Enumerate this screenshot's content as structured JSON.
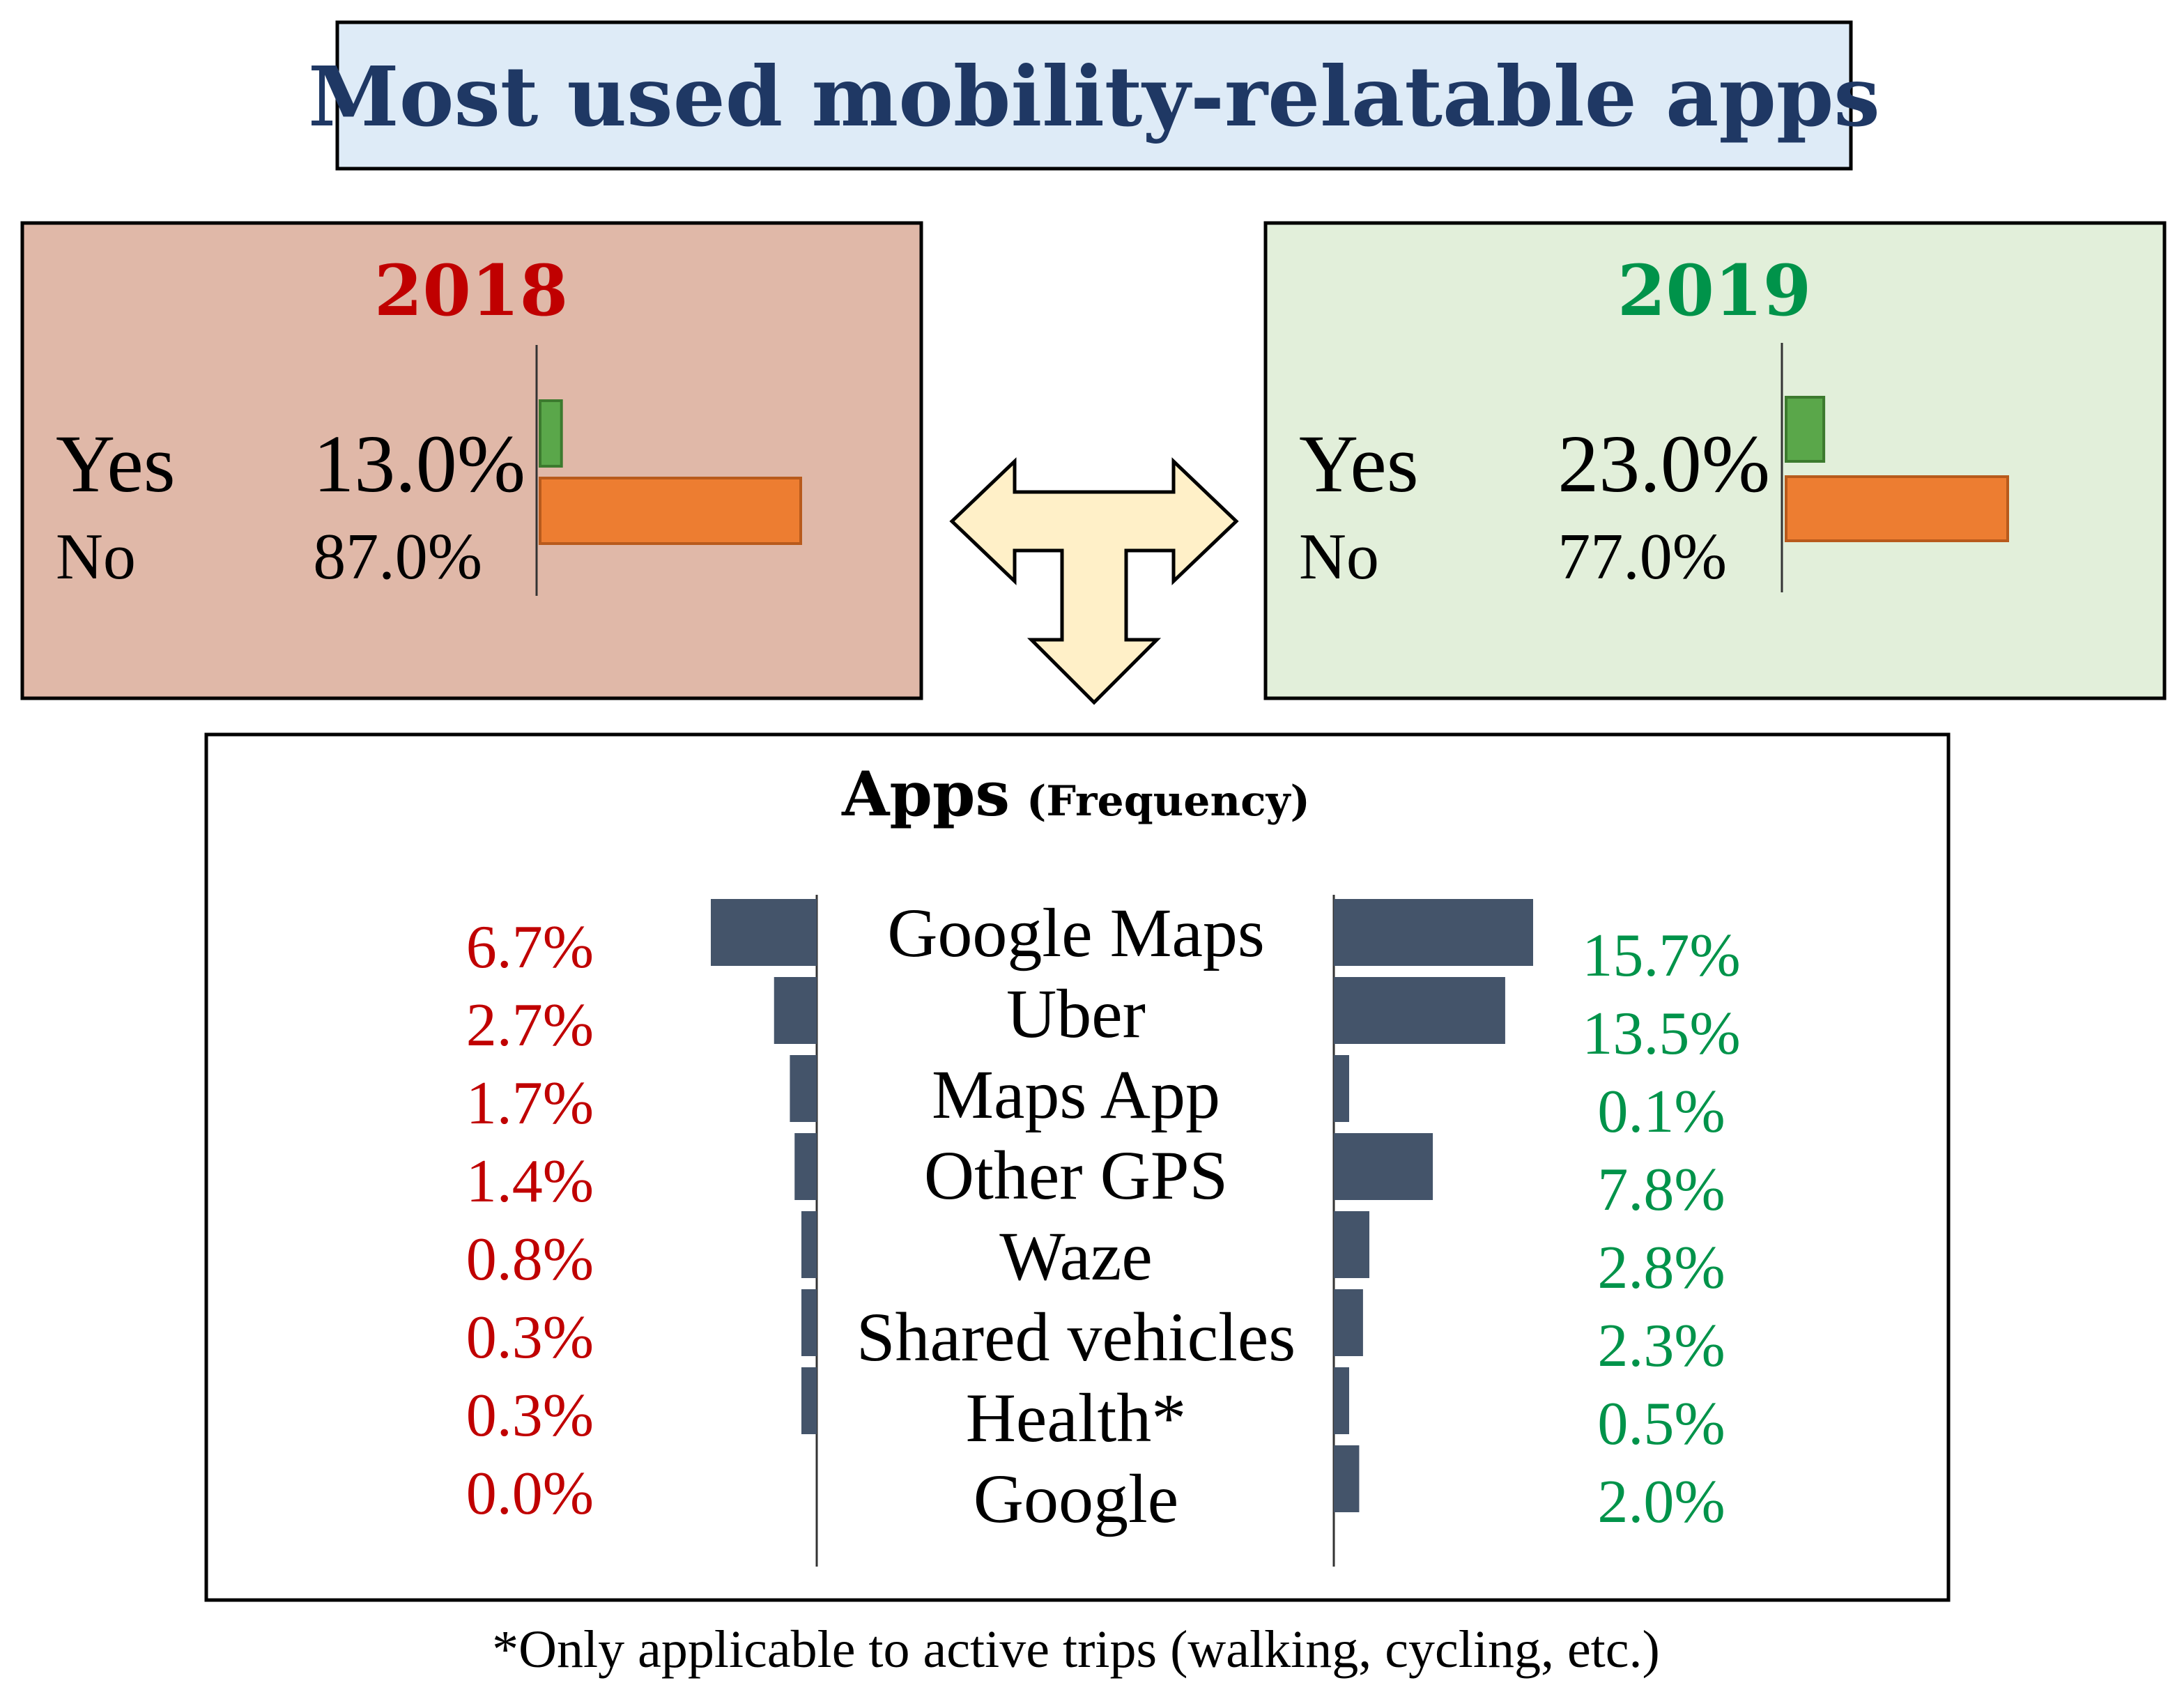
{
  "title": "Most used mobility-relatable apps",
  "colors": {
    "title_box_fill": "#deebf7",
    "box_2018_fill": "#e0b8a8",
    "box_2019_fill": "#e2efda",
    "year_2018": "#c00000",
    "year_2019": "#00934a",
    "yes_bar": "#5aa74a",
    "no_bar": "#ed7d31",
    "app_bar": "#44546a",
    "arrow_fill": "#fff0c8"
  },
  "chart_data": [
    {
      "type": "bar",
      "title": "2018",
      "categories": [
        "Yes",
        "No"
      ],
      "values": [
        13.0,
        87.0
      ],
      "labels": [
        "13.0%",
        "87.0%"
      ],
      "xlim": [
        0,
        87.0
      ]
    },
    {
      "type": "bar",
      "title": "2019",
      "categories": [
        "Yes",
        "No"
      ],
      "values": [
        23.0,
        77.0
      ],
      "labels": [
        "23.0%",
        "77.0%"
      ],
      "xlim": [
        0,
        77.0
      ]
    },
    {
      "type": "bar",
      "title": "Apps",
      "subtitle": "(Frequency)",
      "categories": [
        "Google Maps",
        "Uber",
        "Maps App",
        "Other GPS",
        "Waze",
        "Shared vehicles",
        "Health*",
        "Google"
      ],
      "series": [
        {
          "name": "2018",
          "values": [
            6.7,
            2.7,
            1.7,
            1.4,
            0.8,
            0.3,
            0.3,
            0.0
          ],
          "labels": [
            "6.7%",
            "2.7%",
            "1.7%",
            "1.4%",
            "0.8%",
            "0.3%",
            "0.3%",
            "0.0%"
          ]
        },
        {
          "name": "2019",
          "values": [
            15.7,
            13.5,
            0.1,
            7.8,
            2.8,
            2.3,
            0.5,
            2.0
          ],
          "labels": [
            "15.7%",
            "13.5%",
            "0.1%",
            "7.8%",
            "2.8%",
            "2.3%",
            "0.5%",
            "2.0%"
          ]
        }
      ]
    }
  ],
  "footnote": "*Only applicable to active trips (walking, cycling, etc.)"
}
